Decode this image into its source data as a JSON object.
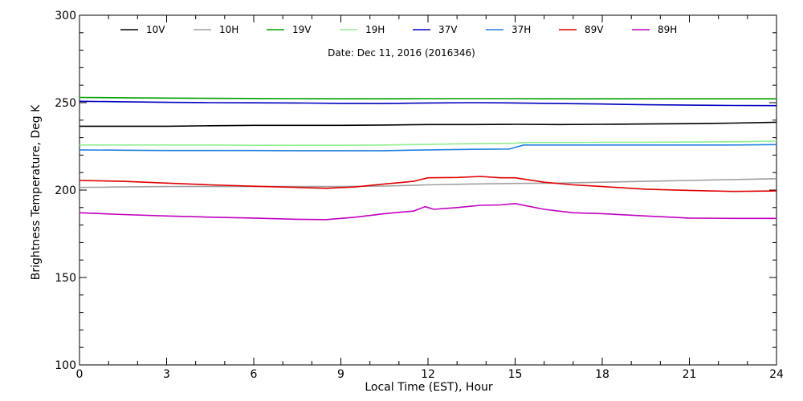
{
  "chart_data": {
    "type": "line",
    "title": "Date: Dec 11, 2016 (2016346)",
    "xlabel": "Local Time (EST), Hour",
    "ylabel": "Brightness Temperature, Deg K",
    "xlim": [
      0,
      24
    ],
    "ylim": [
      100,
      300
    ],
    "x_ticks": [
      0,
      3,
      6,
      9,
      12,
      15,
      18,
      21,
      24
    ],
    "y_ticks": [
      100,
      150,
      200,
      250,
      300
    ],
    "grid": false,
    "legend_position": "top",
    "series": [
      {
        "name": "10V",
        "color": "#000000",
        "x": [
          0,
          1.5,
          3,
          4.5,
          6,
          7.5,
          9,
          10.5,
          12,
          13.5,
          15,
          16.5,
          18,
          19.5,
          21,
          22.5,
          24
        ],
        "y": [
          236.5,
          236.5,
          236.5,
          236.8,
          237,
          237,
          237,
          237.2,
          237.5,
          237.5,
          237.6,
          237.5,
          237.6,
          237.8,
          238,
          238.3,
          238.8
        ]
      },
      {
        "name": "10H",
        "color": "#a0a0a0",
        "x": [
          0,
          1.5,
          3,
          4.5,
          6,
          7.5,
          9,
          10.5,
          12,
          13.5,
          15,
          16.5,
          18,
          19.5,
          21,
          22.5,
          24
        ],
        "y": [
          201.5,
          201.8,
          202,
          202,
          202,
          202,
          202,
          202.3,
          203,
          203.5,
          203.8,
          204,
          204.5,
          205,
          205.5,
          206,
          206.5
        ]
      },
      {
        "name": "19V",
        "color": "#00a000",
        "x": [
          0,
          1.5,
          3,
          4.5,
          6,
          7.5,
          9,
          10.5,
          12,
          13.5,
          15,
          16.5,
          18,
          19.5,
          21,
          22.5,
          24
        ],
        "y": [
          253,
          252.8,
          252.6,
          252.5,
          252.4,
          252.3,
          252.2,
          252.2,
          252.3,
          252.3,
          252.3,
          252.2,
          252.2,
          252.2,
          252.2,
          252.2,
          252.2
        ]
      },
      {
        "name": "19H",
        "color": "#90ee90",
        "x": [
          0,
          1.5,
          3,
          4.5,
          6,
          7.5,
          9,
          10.5,
          12,
          13.5,
          15,
          15.4,
          16.5,
          18,
          19.5,
          21,
          22.5,
          24
        ],
        "y": [
          225.8,
          225.8,
          225.8,
          225.8,
          225.6,
          225.6,
          225.6,
          225.8,
          226.2,
          226.5,
          226.8,
          227.2,
          227.2,
          227.3,
          227.3,
          227.5,
          227.6,
          228
        ]
      },
      {
        "name": "37V",
        "color": "#0000c0",
        "x": [
          0,
          1.5,
          3,
          4.5,
          6,
          7.5,
          9,
          10.5,
          12,
          13.5,
          15,
          16.5,
          18,
          19.5,
          21,
          22.5,
          24
        ],
        "y": [
          250.8,
          250.5,
          250.2,
          250,
          249.9,
          249.8,
          249.6,
          249.5,
          249.8,
          250,
          249.8,
          249.5,
          249.2,
          248.8,
          248.6,
          248.4,
          248.3
        ]
      },
      {
        "name": "37H",
        "color": "#2080e0",
        "x": [
          0,
          1.5,
          3,
          4.5,
          6,
          7.5,
          9,
          10.5,
          12,
          13.5,
          14.8,
          15.3,
          16.5,
          18,
          19.5,
          21,
          22.5,
          24
        ],
        "y": [
          223,
          222.8,
          222.6,
          222.6,
          222.6,
          222.5,
          222.5,
          222.5,
          223,
          223.3,
          223.5,
          225.8,
          225.8,
          225.8,
          225.8,
          225.8,
          225.8,
          226
        ]
      },
      {
        "name": "89V",
        "color": "#e00000",
        "x": [
          0,
          1.5,
          3,
          4.5,
          6,
          7.5,
          8.5,
          9.5,
          10.5,
          11.5,
          12,
          13,
          13.8,
          14.5,
          15,
          16,
          17,
          18,
          19.5,
          21,
          22.5,
          24
        ],
        "y": [
          205.5,
          205,
          204,
          203,
          202.2,
          201.5,
          201,
          201.8,
          203.5,
          205,
          207,
          207.2,
          207.8,
          207,
          207,
          204.5,
          203,
          202,
          200.5,
          199.8,
          199.2,
          199.5
        ]
      },
      {
        "name": "89H",
        "color": "#c000c0",
        "x": [
          0,
          1.5,
          3,
          4.5,
          6,
          7.5,
          8.5,
          9.5,
          10.5,
          11.5,
          11.9,
          12.2,
          13,
          13.8,
          14.5,
          15,
          16,
          17,
          18,
          19.5,
          21,
          22.5,
          24
        ],
        "y": [
          187,
          186,
          185.2,
          184.5,
          184,
          183.3,
          183.1,
          184.5,
          186.5,
          188,
          190.5,
          189,
          190,
          191.3,
          191.5,
          192.3,
          189,
          187,
          186.5,
          185.2,
          184,
          183.8,
          183.8
        ]
      }
    ]
  }
}
